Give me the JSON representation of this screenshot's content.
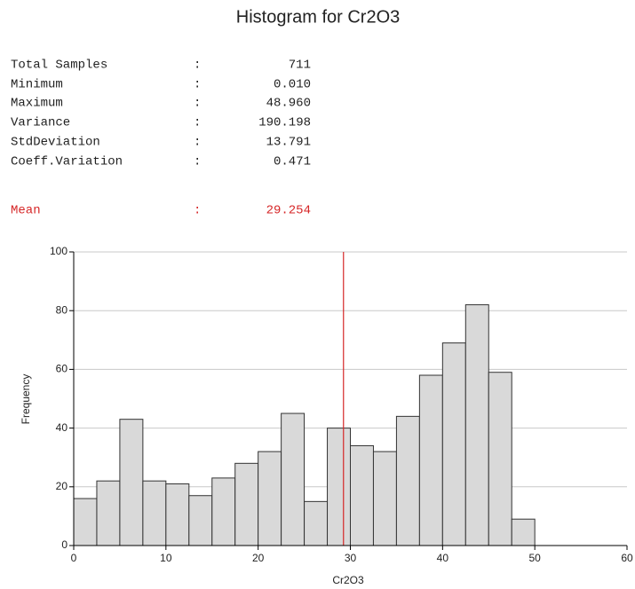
{
  "stats": {
    "separator": ":",
    "rows": [
      {
        "label": "Total Samples",
        "value": "711"
      },
      {
        "label": "Minimum",
        "value": "0.010"
      },
      {
        "label": "Maximum",
        "value": "48.960"
      },
      {
        "label": "Variance",
        "value": "190.198"
      },
      {
        "label": "StdDeviation",
        "value": "13.791"
      },
      {
        "label": "Coeff.Variation",
        "value": "0.471"
      }
    ],
    "mean_label": "Mean"
  },
  "chart_data": {
    "type": "histogram",
    "title": "Histogram for Cr2O3",
    "x_label": "Cr2O3",
    "y_label": "Frequency",
    "bins": [
      0,
      2.5,
      5,
      7.5,
      10,
      12.5,
      15,
      17.5,
      20,
      22.5,
      25,
      27.5,
      30,
      32.5,
      35,
      37.5,
      40,
      42.5,
      45,
      47.5,
      50
    ],
    "values": [
      16,
      22,
      43,
      22,
      21,
      17,
      23,
      28,
      32,
      45,
      15,
      40,
      34,
      32,
      44,
      58,
      69,
      82,
      59,
      9
    ],
    "color": "#d9d9d9",
    "mean": 29.254,
    "mean_color": "#d62728",
    "xlim": [
      0,
      60
    ],
    "xticks": [
      0,
      10,
      20,
      30,
      40,
      50,
      60
    ],
    "ylim": [
      0,
      100
    ],
    "yticks": [
      0,
      20,
      40,
      60,
      80,
      100
    ],
    "grid": true
  }
}
